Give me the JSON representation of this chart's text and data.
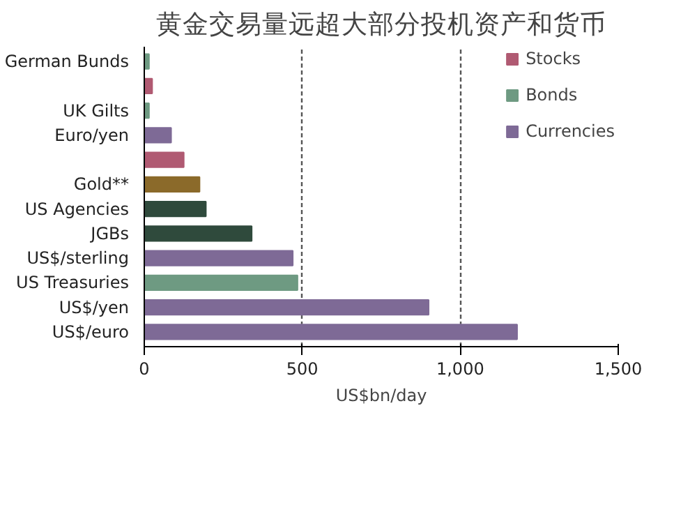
{
  "chart_data": {
    "type": "bar",
    "orientation": "horizontal",
    "title": "黄金交易量远超大部分投机资产和货币",
    "xlabel": "US$bn/day",
    "categories": [
      "German Bunds",
      null,
      "UK Gilts",
      "Euro/yen",
      null,
      "Gold**",
      "US Agencies",
      "JGBs",
      "US$/sterling",
      "US Treasuries",
      "US$/yen",
      "US$/euro"
    ],
    "series": [
      {
        "name": "Stocks",
        "color": "#b05a72",
        "values": [
          null,
          25,
          null,
          null,
          125,
          null,
          null,
          null,
          null,
          null,
          null,
          null
        ]
      },
      {
        "name": "Bonds",
        "color": "#6e9a82",
        "colors": [
          null,
          null,
          null,
          null,
          null,
          null,
          "#2f4a3c",
          "#2f4a3c",
          null,
          null,
          null,
          null
        ],
        "values": [
          15,
          null,
          15,
          null,
          null,
          null,
          195,
          340,
          null,
          485,
          null,
          null
        ]
      },
      {
        "name": "Currencies",
        "color": "#7e6a96",
        "values": [
          null,
          null,
          null,
          85,
          null,
          null,
          null,
          null,
          470,
          null,
          900,
          1180
        ]
      },
      {
        "color": "#8b6a2a",
        "values": [
          null,
          null,
          null,
          null,
          null,
          175,
          null,
          null,
          null,
          null,
          null,
          null
        ]
      }
    ],
    "xlim": [
      0,
      1500
    ],
    "xticks": [
      0,
      500,
      {
        "value": 1000,
        "label": "1,000"
      },
      {
        "value": 1500,
        "label": "1,500"
      }
    ],
    "grid": "x",
    "legend": "top right"
  }
}
